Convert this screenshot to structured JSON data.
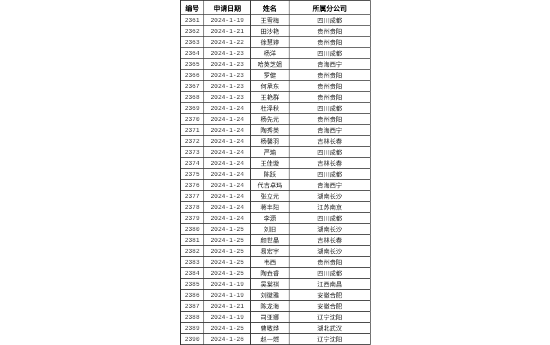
{
  "headers": [
    "编号",
    "申请日期",
    "姓名",
    "所属分公司"
  ],
  "rows": [
    [
      "2361",
      "2024-1-19",
      "王雪梅",
      "四川成都"
    ],
    [
      "2362",
      "2024-1-21",
      "田沙艳",
      "贵州贵阳"
    ],
    [
      "2363",
      "2024-1-22",
      "徐慧婷",
      "贵州贵阳"
    ],
    [
      "2364",
      "2024-1-23",
      "杨洋",
      "四川成都"
    ],
    [
      "2365",
      "2024-1-23",
      "哈英芝姐",
      "青海西宁"
    ],
    [
      "2366",
      "2024-1-23",
      "罗健",
      "贵州贵阳"
    ],
    [
      "2367",
      "2024-1-23",
      "何承东",
      "贵州贵阳"
    ],
    [
      "2368",
      "2024-1-23",
      "王艳群",
      "贵州贵阳"
    ],
    [
      "2369",
      "2024-1-24",
      "杜泽秋",
      "四川成都"
    ],
    [
      "2370",
      "2024-1-24",
      "杨先元",
      "贵州贵阳"
    ],
    [
      "2371",
      "2024-1-24",
      "陶秀英",
      "青海西宁"
    ],
    [
      "2372",
      "2024-1-24",
      "杨馨羽",
      "吉林长春"
    ],
    [
      "2373",
      "2024-1-24",
      "严瑜",
      "四川成都"
    ],
    [
      "2374",
      "2024-1-24",
      "王佳璇",
      "吉林长春"
    ],
    [
      "2375",
      "2024-1-24",
      "陈跃",
      "四川成都"
    ],
    [
      "2376",
      "2024-1-24",
      "代吉卓玛",
      "青海西宁"
    ],
    [
      "2377",
      "2024-1-24",
      "张立元",
      "湖南长沙"
    ],
    [
      "2378",
      "2024-1-24",
      "蒋丰阳",
      "江苏南京"
    ],
    [
      "2379",
      "2024-1-24",
      "李源",
      "四川成都"
    ],
    [
      "2380",
      "2024-1-25",
      "刘旧",
      "湖南长沙"
    ],
    [
      "2381",
      "2024-1-25",
      "颜世晶",
      "吉林长春"
    ],
    [
      "2382",
      "2024-1-25",
      "易宏宇",
      "湖南长沙"
    ],
    [
      "2383",
      "2024-1-25",
      "韦西",
      "贵州贵阳"
    ],
    [
      "2384",
      "2024-1-25",
      "陶垚睿",
      "四川成都"
    ],
    [
      "2385",
      "2024-1-19",
      "吴棠祺",
      "江西南昌"
    ],
    [
      "2386",
      "2024-1-19",
      "刘徽雅",
      "安徽合肥"
    ],
    [
      "2387",
      "2024-1-21",
      "陈龙海",
      "安徽合肥"
    ],
    [
      "2388",
      "2024-1-19",
      "司亚娜",
      "辽宁沈阳"
    ],
    [
      "2389",
      "2024-1-25",
      "曹敬烨",
      "湖北武汉"
    ],
    [
      "2390",
      "2024-1-26",
      "赵一燃",
      "辽宁沈阳"
    ]
  ]
}
